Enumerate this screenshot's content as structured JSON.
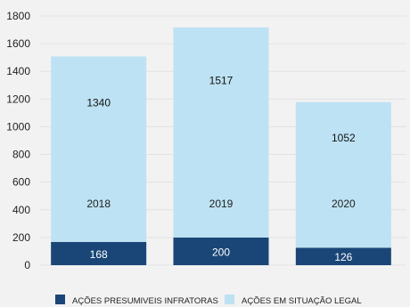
{
  "chart_data": {
    "type": "bar",
    "stacked": true,
    "categories": [
      "2018",
      "2019",
      "2020"
    ],
    "series": [
      {
        "name": "AÇÕES PRESUMIVEIS INFRATORAS",
        "values": [
          168,
          200,
          126
        ],
        "color": "#1a4677",
        "label_color": "#ffffff"
      },
      {
        "name": "AÇÕES EM SITUAÇÃO LEGAL",
        "values": [
          1340,
          1517,
          1052
        ],
        "color": "#bde2f3",
        "label_color": "#111111"
      }
    ],
    "ylim": [
      0,
      1800
    ],
    "yticks": [
      "0",
      "200",
      "400",
      "600",
      "800",
      "1000",
      "1200",
      "1400",
      "1600",
      "1800"
    ],
    "grid": true,
    "legend_position": "bottom"
  }
}
